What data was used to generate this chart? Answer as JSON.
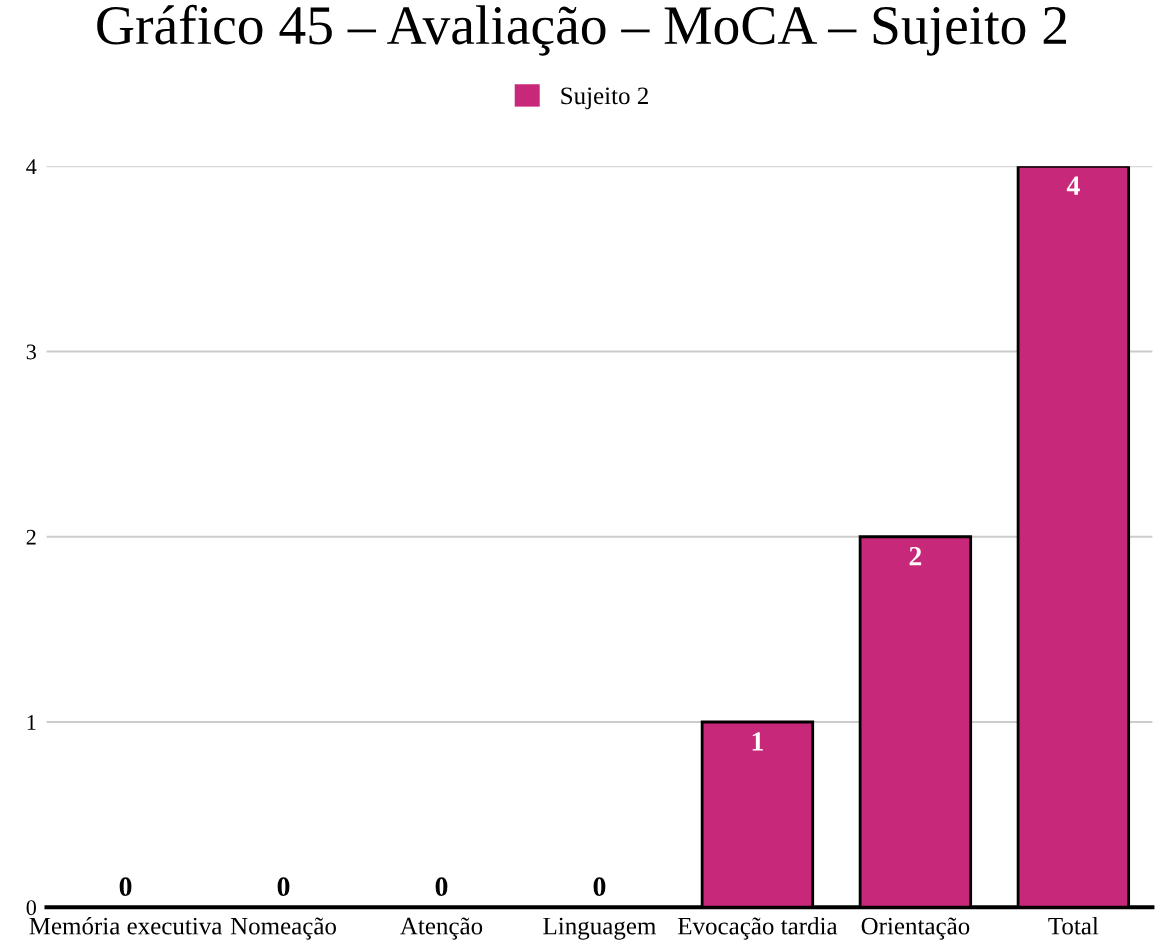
{
  "chart_data": {
    "type": "bar",
    "title": "Gráfico 45 – Avaliação – MoCA – Sujeito 2",
    "categories": [
      "Memória executiva",
      "Nomeação",
      "Atenção",
      "Linguagem",
      "Evocação tardia",
      "Orientação",
      "Total"
    ],
    "series": [
      {
        "name": "Sujeito 2",
        "color": "#c8287a",
        "values": [
          0,
          0,
          0,
          0,
          1,
          2,
          4
        ]
      }
    ],
    "ylim": [
      0,
      4
    ],
    "yticks": [
      0,
      1,
      2,
      3,
      4
    ],
    "grid": "y",
    "legend": "top",
    "data_labels": true
  }
}
